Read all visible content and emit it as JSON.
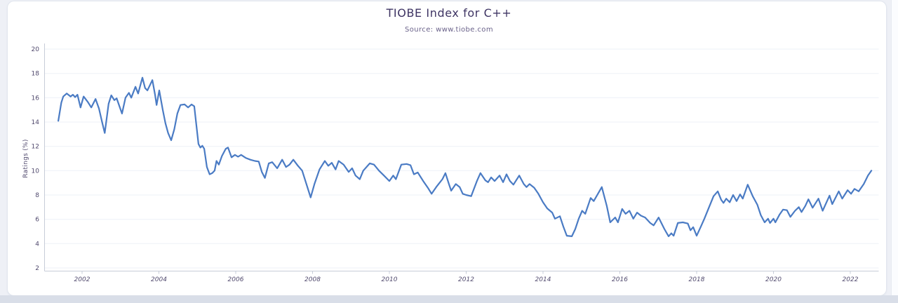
{
  "header": {
    "title": "TIOBE Index for C++",
    "subtitle": "Source: www.tiobe.com"
  },
  "chart_data": {
    "type": "line",
    "title": "TIOBE Index for C++",
    "subtitle": "Source: www.tiobe.com",
    "xlabel": "",
    "ylabel": "Ratings (%)",
    "x_ticks": [
      2002,
      2004,
      2006,
      2008,
      2010,
      2012,
      2014,
      2016,
      2018,
      2020,
      2022
    ],
    "y_ticks": [
      2,
      4,
      6,
      8,
      10,
      12,
      14,
      16,
      18,
      20
    ],
    "xlim": [
      2001.0,
      2022.75
    ],
    "ylim": [
      2,
      20
    ],
    "grid": "horizontal",
    "legend": "none",
    "colors": {
      "line": "#4a7bc4",
      "grid": "#eef1f7",
      "axis": "#c7ccd8",
      "tick_text": "#514a6e",
      "title_text": "#3e3463"
    },
    "series": [
      {
        "name": "C++",
        "points": [
          [
            2001.38,
            14.1
          ],
          [
            2001.46,
            15.6
          ],
          [
            2001.51,
            16.1
          ],
          [
            2001.6,
            16.35
          ],
          [
            2001.7,
            16.1
          ],
          [
            2001.76,
            16.25
          ],
          [
            2001.82,
            16.05
          ],
          [
            2001.88,
            16.25
          ],
          [
            2001.96,
            15.2
          ],
          [
            2002.04,
            16.1
          ],
          [
            2002.15,
            15.65
          ],
          [
            2002.24,
            15.2
          ],
          [
            2002.35,
            15.9
          ],
          [
            2002.44,
            15.1
          ],
          [
            2002.52,
            14.0
          ],
          [
            2002.59,
            13.1
          ],
          [
            2002.69,
            15.5
          ],
          [
            2002.76,
            16.2
          ],
          [
            2002.84,
            15.8
          ],
          [
            2002.9,
            15.95
          ],
          [
            2003.04,
            14.7
          ],
          [
            2003.13,
            16.0
          ],
          [
            2003.22,
            16.4
          ],
          [
            2003.28,
            16.0
          ],
          [
            2003.39,
            16.9
          ],
          [
            2003.46,
            16.35
          ],
          [
            2003.57,
            17.65
          ],
          [
            2003.64,
            16.8
          ],
          [
            2003.7,
            16.6
          ],
          [
            2003.83,
            17.45
          ],
          [
            2003.9,
            16.25
          ],
          [
            2003.94,
            15.4
          ],
          [
            2004.01,
            16.6
          ],
          [
            2004.1,
            15.0
          ],
          [
            2004.17,
            13.9
          ],
          [
            2004.24,
            13.1
          ],
          [
            2004.32,
            12.5
          ],
          [
            2004.4,
            13.4
          ],
          [
            2004.48,
            14.7
          ],
          [
            2004.56,
            15.4
          ],
          [
            2004.67,
            15.45
          ],
          [
            2004.76,
            15.2
          ],
          [
            2004.85,
            15.45
          ],
          [
            2004.92,
            15.3
          ],
          [
            2004.97,
            13.9
          ],
          [
            2005.03,
            12.2
          ],
          [
            2005.08,
            11.9
          ],
          [
            2005.13,
            12.05
          ],
          [
            2005.18,
            11.8
          ],
          [
            2005.25,
            10.3
          ],
          [
            2005.32,
            9.7
          ],
          [
            2005.39,
            9.8
          ],
          [
            2005.45,
            10.0
          ],
          [
            2005.5,
            10.8
          ],
          [
            2005.56,
            10.5
          ],
          [
            2005.64,
            11.2
          ],
          [
            2005.74,
            11.8
          ],
          [
            2005.8,
            11.9
          ],
          [
            2005.89,
            11.1
          ],
          [
            2005.98,
            11.3
          ],
          [
            2006.06,
            11.15
          ],
          [
            2006.14,
            11.3
          ],
          [
            2006.26,
            11.05
          ],
          [
            2006.38,
            10.9
          ],
          [
            2006.5,
            10.8
          ],
          [
            2006.6,
            10.75
          ],
          [
            2006.68,
            9.9
          ],
          [
            2006.76,
            9.4
          ],
          [
            2006.86,
            10.6
          ],
          [
            2006.95,
            10.7
          ],
          [
            2007.08,
            10.2
          ],
          [
            2007.21,
            10.9
          ],
          [
            2007.31,
            10.3
          ],
          [
            2007.4,
            10.5
          ],
          [
            2007.5,
            10.9
          ],
          [
            2007.62,
            10.4
          ],
          [
            2007.73,
            10.0
          ],
          [
            2007.83,
            9.0
          ],
          [
            2007.95,
            7.8
          ],
          [
            2008.05,
            8.9
          ],
          [
            2008.18,
            10.1
          ],
          [
            2008.32,
            10.8
          ],
          [
            2008.41,
            10.4
          ],
          [
            2008.5,
            10.65
          ],
          [
            2008.6,
            10.1
          ],
          [
            2008.68,
            10.8
          ],
          [
            2008.81,
            10.5
          ],
          [
            2008.94,
            9.9
          ],
          [
            2009.03,
            10.2
          ],
          [
            2009.12,
            9.6
          ],
          [
            2009.23,
            9.3
          ],
          [
            2009.32,
            10.0
          ],
          [
            2009.49,
            10.6
          ],
          [
            2009.6,
            10.5
          ],
          [
            2009.73,
            10.0
          ],
          [
            2009.86,
            9.6
          ],
          [
            2010.0,
            9.15
          ],
          [
            2010.1,
            9.6
          ],
          [
            2010.17,
            9.3
          ],
          [
            2010.31,
            10.5
          ],
          [
            2010.45,
            10.55
          ],
          [
            2010.55,
            10.45
          ],
          [
            2010.64,
            9.7
          ],
          [
            2010.74,
            9.85
          ],
          [
            2010.88,
            9.15
          ],
          [
            2011.0,
            8.6
          ],
          [
            2011.1,
            8.1
          ],
          [
            2011.22,
            8.65
          ],
          [
            2011.28,
            8.9
          ],
          [
            2011.38,
            9.3
          ],
          [
            2011.46,
            9.8
          ],
          [
            2011.55,
            8.9
          ],
          [
            2011.61,
            8.35
          ],
          [
            2011.73,
            8.9
          ],
          [
            2011.83,
            8.65
          ],
          [
            2011.91,
            8.1
          ],
          [
            2012.0,
            8.0
          ],
          [
            2012.13,
            7.9
          ],
          [
            2012.28,
            9.15
          ],
          [
            2012.37,
            9.8
          ],
          [
            2012.5,
            9.2
          ],
          [
            2012.57,
            9.05
          ],
          [
            2012.65,
            9.45
          ],
          [
            2012.74,
            9.15
          ],
          [
            2012.87,
            9.6
          ],
          [
            2012.96,
            9.05
          ],
          [
            2013.05,
            9.7
          ],
          [
            2013.14,
            9.15
          ],
          [
            2013.23,
            8.85
          ],
          [
            2013.38,
            9.6
          ],
          [
            2013.5,
            8.9
          ],
          [
            2013.57,
            8.65
          ],
          [
            2013.65,
            8.9
          ],
          [
            2013.77,
            8.6
          ],
          [
            2013.88,
            8.1
          ],
          [
            2014.0,
            7.4
          ],
          [
            2014.11,
            6.9
          ],
          [
            2014.24,
            6.55
          ],
          [
            2014.31,
            6.05
          ],
          [
            2014.44,
            6.25
          ],
          [
            2014.53,
            5.4
          ],
          [
            2014.62,
            4.65
          ],
          [
            2014.75,
            4.6
          ],
          [
            2014.84,
            5.2
          ],
          [
            2014.93,
            6.05
          ],
          [
            2015.02,
            6.7
          ],
          [
            2015.1,
            6.45
          ],
          [
            2015.24,
            7.75
          ],
          [
            2015.32,
            7.5
          ],
          [
            2015.53,
            8.65
          ],
          [
            2015.66,
            7.1
          ],
          [
            2015.75,
            5.75
          ],
          [
            2015.88,
            6.15
          ],
          [
            2015.95,
            5.75
          ],
          [
            2016.06,
            6.85
          ],
          [
            2016.15,
            6.45
          ],
          [
            2016.25,
            6.7
          ],
          [
            2016.35,
            6.05
          ],
          [
            2016.45,
            6.55
          ],
          [
            2016.55,
            6.3
          ],
          [
            2016.66,
            6.15
          ],
          [
            2016.79,
            5.7
          ],
          [
            2016.88,
            5.5
          ],
          [
            2017.01,
            6.15
          ],
          [
            2017.16,
            5.2
          ],
          [
            2017.27,
            4.6
          ],
          [
            2017.34,
            4.85
          ],
          [
            2017.4,
            4.65
          ],
          [
            2017.51,
            5.7
          ],
          [
            2017.64,
            5.75
          ],
          [
            2017.77,
            5.65
          ],
          [
            2017.84,
            5.1
          ],
          [
            2017.91,
            5.35
          ],
          [
            2018.0,
            4.65
          ],
          [
            2018.11,
            5.4
          ],
          [
            2018.2,
            6.05
          ],
          [
            2018.31,
            6.9
          ],
          [
            2018.44,
            7.9
          ],
          [
            2018.55,
            8.3
          ],
          [
            2018.64,
            7.6
          ],
          [
            2018.7,
            7.35
          ],
          [
            2018.77,
            7.7
          ],
          [
            2018.86,
            7.4
          ],
          [
            2018.95,
            8.0
          ],
          [
            2019.04,
            7.5
          ],
          [
            2019.13,
            8.05
          ],
          [
            2019.2,
            7.7
          ],
          [
            2019.33,
            8.85
          ],
          [
            2019.46,
            7.9
          ],
          [
            2019.58,
            7.2
          ],
          [
            2019.67,
            6.35
          ],
          [
            2019.77,
            5.75
          ],
          [
            2019.86,
            6.05
          ],
          [
            2019.91,
            5.7
          ],
          [
            2020.0,
            6.05
          ],
          [
            2020.05,
            5.75
          ],
          [
            2020.16,
            6.4
          ],
          [
            2020.25,
            6.8
          ],
          [
            2020.35,
            6.75
          ],
          [
            2020.44,
            6.2
          ],
          [
            2020.56,
            6.7
          ],
          [
            2020.66,
            7.0
          ],
          [
            2020.73,
            6.6
          ],
          [
            2020.83,
            7.1
          ],
          [
            2020.91,
            7.65
          ],
          [
            2021.02,
            6.95
          ],
          [
            2021.17,
            7.7
          ],
          [
            2021.28,
            6.7
          ],
          [
            2021.46,
            7.95
          ],
          [
            2021.53,
            7.25
          ],
          [
            2021.7,
            8.3
          ],
          [
            2021.79,
            7.7
          ],
          [
            2021.93,
            8.4
          ],
          [
            2022.02,
            8.1
          ],
          [
            2022.11,
            8.5
          ],
          [
            2022.22,
            8.3
          ],
          [
            2022.35,
            8.9
          ],
          [
            2022.46,
            9.6
          ],
          [
            2022.55,
            10.0
          ]
        ]
      }
    ]
  }
}
